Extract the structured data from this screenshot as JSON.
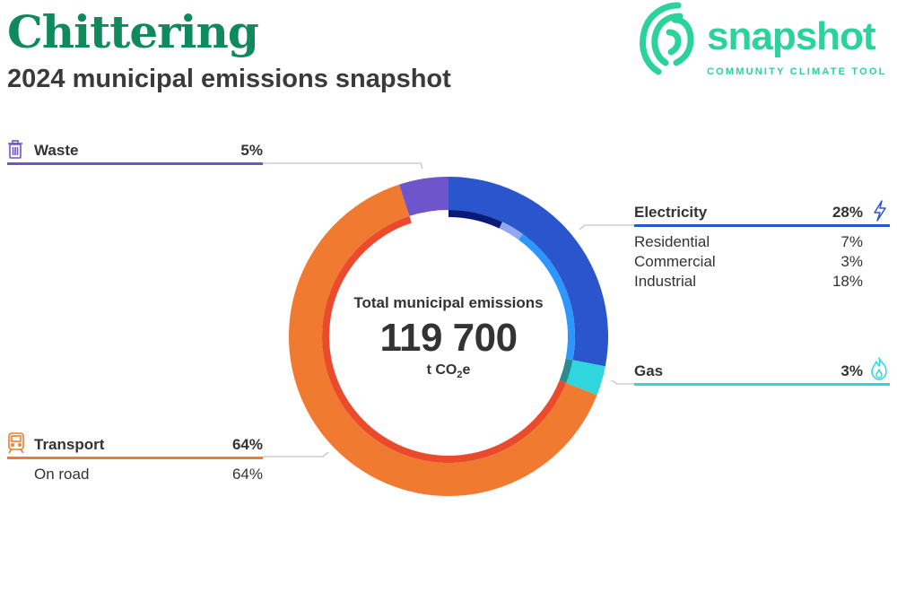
{
  "header": {
    "title": "Chittering",
    "subtitle": "2024 municipal emissions snapshot"
  },
  "brand": {
    "word": "snapshot",
    "tagline": "COMMUNITY CLIMATE TOOL",
    "color": "#2bd39b"
  },
  "center": {
    "label": "Total municipal emissions",
    "total": "119 700",
    "unit_prefix": "t CO",
    "unit_sub": "2",
    "unit_suffix": "e"
  },
  "chart_data": {
    "type": "donut",
    "title": "2024 municipal emissions snapshot",
    "total_value": 119700,
    "total_unit": "t CO2e",
    "categories": [
      {
        "name": "Electricity",
        "value_pct": 28,
        "label": "28%",
        "color": "#2b55cc",
        "icon": "lightning-icon",
        "subcategories": [
          {
            "name": "Residential",
            "value_pct": 7,
            "label": "7%",
            "color": "#0a1a78"
          },
          {
            "name": "Commercial",
            "value_pct": 3,
            "label": "3%",
            "color": "#8fa8ee"
          },
          {
            "name": "Industrial",
            "value_pct": 18,
            "label": "18%",
            "color": "#2d97ff"
          }
        ]
      },
      {
        "name": "Gas",
        "value_pct": 3,
        "label": "3%",
        "color": "#2fd6dd",
        "icon": "flame-icon",
        "subcategories": [
          {
            "name": "Gas",
            "value_pct": 3,
            "label": "3%",
            "color": "#2a8a8e"
          }
        ]
      },
      {
        "name": "Transport",
        "value_pct": 64,
        "label": "64%",
        "color": "#f07a30",
        "icon": "train-icon",
        "subcategories": [
          {
            "name": "On road",
            "value_pct": 64,
            "label": "64%",
            "color": "#ec4a2c"
          }
        ]
      },
      {
        "name": "Waste",
        "value_pct": 5,
        "label": "5%",
        "color": "#6e55cc",
        "icon": "trash-icon",
        "subcategories": []
      }
    ]
  }
}
